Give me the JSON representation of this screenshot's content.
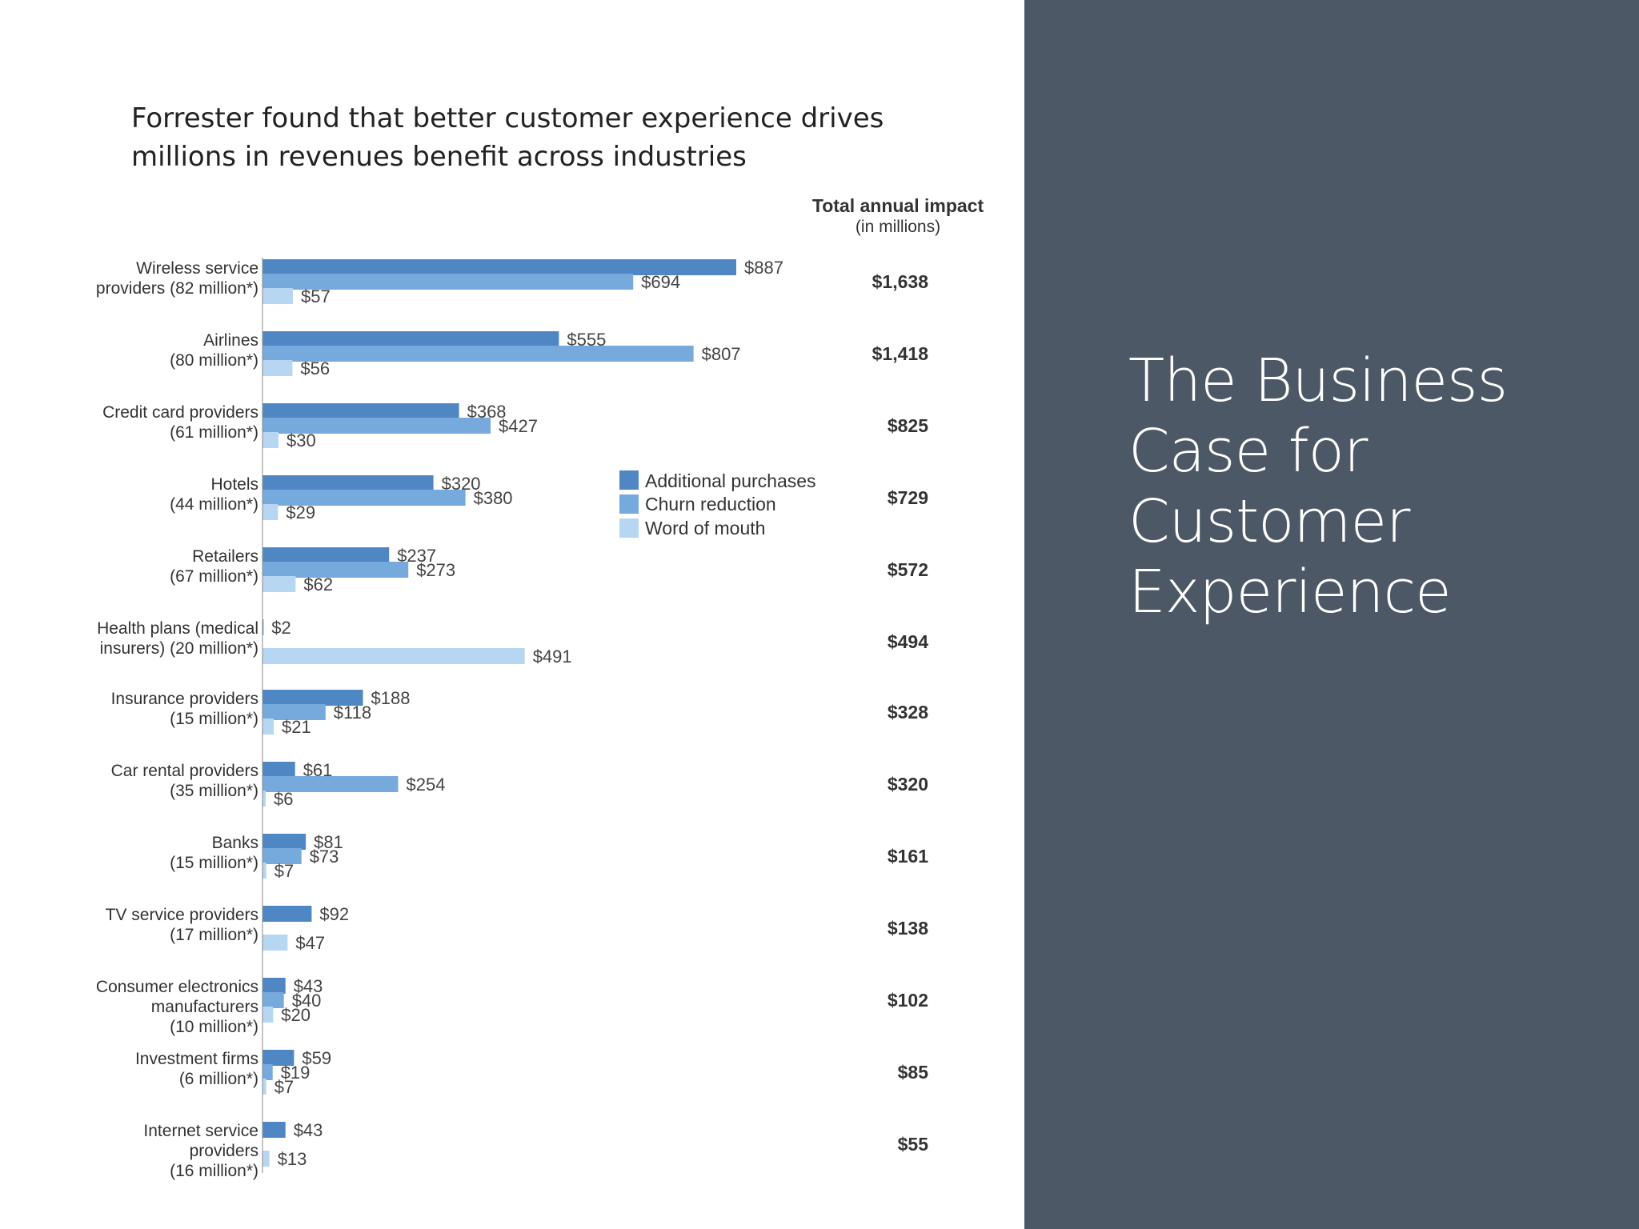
{
  "intro": {
    "line1": "Forrester found that better customer experience drives",
    "line2": "millions in revenues benefit across industries"
  },
  "heading": {
    "lines": [
      "The Business",
      "Case for",
      "Customer",
      "Experience"
    ]
  },
  "colors": {
    "additional_purchases": "#4f87c4",
    "churn_reduction": "#76a9dc",
    "word_of_mouth": "#b7d6f1",
    "right_panel": "#4d5866"
  },
  "chart_data": {
    "type": "bar",
    "orientation": "horizontal",
    "legend_position": "middle",
    "total_header": {
      "line1": "Total annual impact",
      "line2": "(in millions)"
    },
    "series": [
      {
        "name": "Additional purchases"
      },
      {
        "name": "Churn reduction"
      },
      {
        "name": "Word of mouth"
      }
    ],
    "rows": [
      {
        "label": [
          "Wireless service",
          "providers (82 million*)"
        ],
        "values": [
          887,
          694,
          57
        ],
        "value_labels": [
          "$887",
          "$694",
          "$57"
        ],
        "total": "$1,638"
      },
      {
        "label": [
          "Airlines",
          "(80 million*)"
        ],
        "values": [
          555,
          807,
          56
        ],
        "value_labels": [
          "$555",
          "$807",
          "$56"
        ],
        "total": "$1,418"
      },
      {
        "label": [
          "Credit card providers",
          "(61 million*)"
        ],
        "values": [
          368,
          427,
          30
        ],
        "value_labels": [
          "$368",
          "$427",
          "$30"
        ],
        "total": "$825"
      },
      {
        "label": [
          "Hotels",
          "(44 million*)"
        ],
        "values": [
          320,
          380,
          29
        ],
        "value_labels": [
          "$320",
          "$380",
          "$29"
        ],
        "total": "$729"
      },
      {
        "label": [
          "Retailers",
          "(67 million*)"
        ],
        "values": [
          237,
          273,
          62
        ],
        "value_labels": [
          "$237",
          "$273",
          "$62"
        ],
        "total": "$572"
      },
      {
        "label": [
          "Health plans (medical",
          "insurers) (20 million*)"
        ],
        "values": [
          2,
          0,
          491
        ],
        "value_labels": [
          "$2",
          "",
          "$491"
        ],
        "total": "$494"
      },
      {
        "label": [
          "Insurance providers",
          "(15 million*)"
        ],
        "values": [
          188,
          118,
          21
        ],
        "value_labels": [
          "$188",
          "$118",
          "$21"
        ],
        "total": "$328"
      },
      {
        "label": [
          "Car rental providers",
          "(35 million*)"
        ],
        "values": [
          61,
          254,
          6
        ],
        "value_labels": [
          "$61",
          "$254",
          "$6"
        ],
        "total": "$320"
      },
      {
        "label": [
          "Banks",
          "(15 million*)"
        ],
        "values": [
          81,
          73,
          7
        ],
        "value_labels": [
          "$81",
          "$73",
          "$7"
        ],
        "total": "$161"
      },
      {
        "label": [
          "TV service providers",
          "(17 million*)"
        ],
        "values": [
          92,
          0,
          47
        ],
        "value_labels": [
          "$92",
          "",
          "$47"
        ],
        "total": "$138"
      },
      {
        "label": [
          "Consumer electronics",
          "manufacturers",
          "(10 million*)"
        ],
        "values": [
          43,
          40,
          20
        ],
        "value_labels": [
          "$43",
          "$40",
          "$20"
        ],
        "total": "$102"
      },
      {
        "label": [
          "Investment firms",
          "(6 million*)"
        ],
        "values": [
          59,
          19,
          7
        ],
        "value_labels": [
          "$59",
          "$19",
          "$7"
        ],
        "total": "$85"
      },
      {
        "label": [
          "Internet service",
          "providers",
          "(16 million*)"
        ],
        "values": [
          43,
          0,
          13
        ],
        "value_labels": [
          "$43",
          "",
          "$13"
        ],
        "total": "$55"
      }
    ]
  }
}
